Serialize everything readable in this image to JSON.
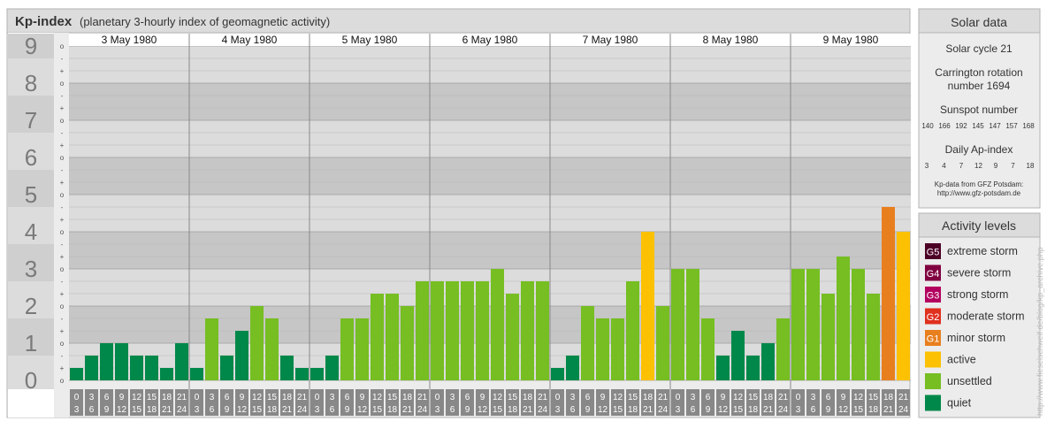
{
  "header": {
    "title": "Kp-index",
    "subtitle": "(planetary 3-hourly index of geomagnetic activity)"
  },
  "chart_data": {
    "type": "bar",
    "title": "Kp-index",
    "subtitle": "(planetary 3-hourly index of geomagnetic activity)",
    "ylim": [
      0,
      9
    ],
    "y_ticks": [
      "0",
      "1",
      "2",
      "3",
      "4",
      "5",
      "6",
      "7",
      "8",
      "9"
    ],
    "sub_ticks": [
      "o",
      "+",
      "-"
    ],
    "days": [
      "3 May 1980",
      "4 May 1980",
      "5 May 1980",
      "6 May 1980",
      "7 May 1980",
      "8 May 1980",
      "9 May 1980"
    ],
    "interval_starts": [
      "0",
      "3",
      "6",
      "9",
      "12",
      "15",
      "18",
      "21"
    ],
    "interval_ends": [
      "3",
      "6",
      "9",
      "12",
      "15",
      "18",
      "21",
      "24"
    ],
    "values": [
      [
        0.333,
        0.667,
        1,
        1,
        0.667,
        0.667,
        0.333,
        1
      ],
      [
        0.333,
        1.667,
        0.667,
        1.333,
        2,
        1.667,
        0.667,
        0.333
      ],
      [
        0.333,
        0.667,
        1.667,
        1.667,
        2.333,
        2.333,
        2,
        2.667
      ],
      [
        2.667,
        2.667,
        2.667,
        2.667,
        3,
        2.333,
        2.667,
        2.667
      ],
      [
        0.333,
        0.667,
        2,
        1.667,
        1.667,
        2.667,
        4,
        2
      ],
      [
        3,
        3,
        1.667,
        0.667,
        1.333,
        0.667,
        1,
        1.667
      ],
      [
        3,
        3,
        2.333,
        3.333,
        3,
        2.333,
        4.667,
        4
      ]
    ],
    "grid": true
  },
  "solar": {
    "title": "Solar data",
    "cycle": "Solar cycle 21",
    "carrington_line1": "Carrington rotation",
    "carrington_line2": "number 1694",
    "sunspot_label": "Sunspot number",
    "sunspot_values": [
      "140",
      "166",
      "192",
      "145",
      "147",
      "157",
      "168"
    ],
    "ap_label": "Daily Ap-index",
    "ap_values": [
      "3",
      "4",
      "7",
      "12",
      "9",
      "7",
      "18"
    ],
    "source_line1": "Kp-data from GFZ Potsdam:",
    "source_line2": "http://www.gfz-potsdam.de"
  },
  "activity": {
    "title": "Activity levels",
    "levels": [
      {
        "code": "G5",
        "label": "extreme storm",
        "color": "#4d0026"
      },
      {
        "code": "G4",
        "label": "severe storm",
        "color": "#800040"
      },
      {
        "code": "G3",
        "label": "strong storm",
        "color": "#b3005f"
      },
      {
        "code": "G2",
        "label": "moderate storm",
        "color": "#e0301e"
      },
      {
        "code": "G1",
        "label": "minor storm",
        "color": "#e87f1e"
      },
      {
        "code": "",
        "label": "active",
        "color": "#fbc102"
      },
      {
        "code": "",
        "label": "unsettled",
        "color": "#76be22"
      },
      {
        "code": "",
        "label": "quiet",
        "color": "#00884a"
      }
    ]
  },
  "watermark": "http://www.fieselschweif.de/blog/kp_archive.php"
}
